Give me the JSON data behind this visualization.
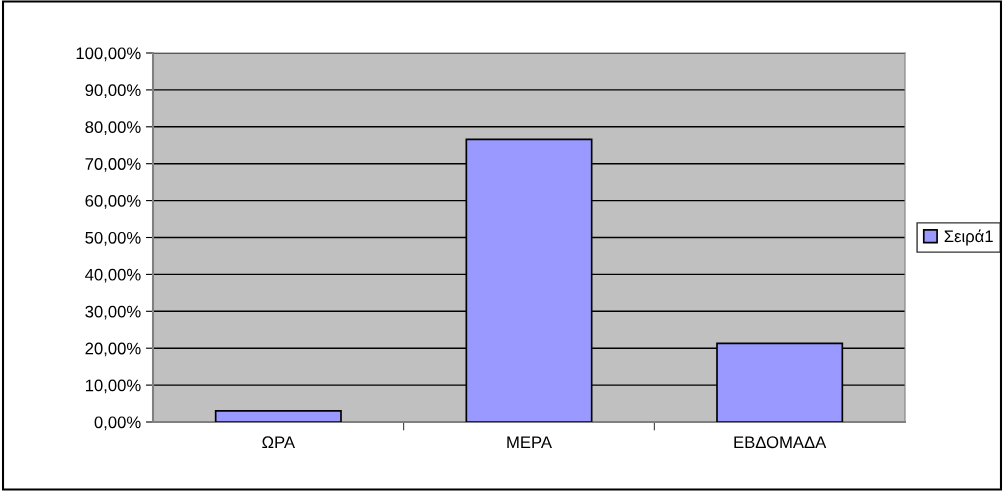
{
  "chart_data": {
    "type": "bar",
    "categories": [
      "ΩΡΑ",
      "ΜΕΡΑ",
      "ΕΒΔΟΜΑΔΑ"
    ],
    "series": [
      {
        "name": "Σειρά1",
        "color": "#9999ff",
        "values": [
          3.0,
          76.6,
          21.3
        ]
      }
    ],
    "ylim": [
      0,
      100
    ],
    "yticks": [
      {
        "value": 0,
        "label": "0,00%"
      },
      {
        "value": 10,
        "label": "10,00%"
      },
      {
        "value": 20,
        "label": "20,00%"
      },
      {
        "value": 30,
        "label": "30,00%"
      },
      {
        "value": 40,
        "label": "40,00%"
      },
      {
        "value": 50,
        "label": "50,00%"
      },
      {
        "value": 60,
        "label": "60,00%"
      },
      {
        "value": 70,
        "label": "70,00%"
      },
      {
        "value": 80,
        "label": "80,00%"
      },
      {
        "value": 90,
        "label": "90,00%"
      },
      {
        "value": 100,
        "label": "100,00%"
      }
    ],
    "grid": "y",
    "legend": "right"
  }
}
